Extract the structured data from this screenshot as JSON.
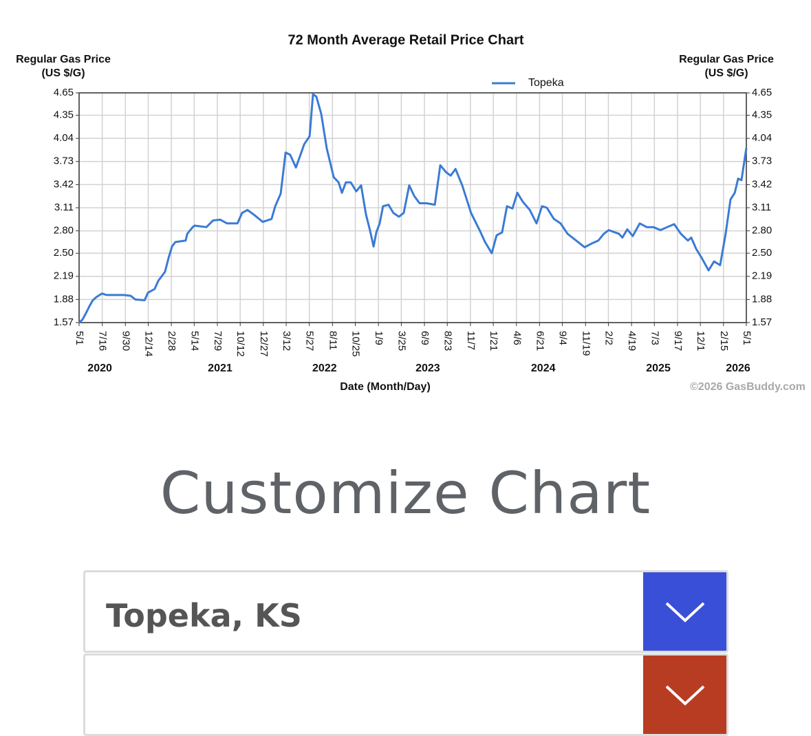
{
  "chart_data": {
    "type": "line",
    "title": "72 Month Average Retail Price Chart",
    "y_label": "Regular Gas Price (US $/G)",
    "y2_label": "Regular Gas Price (US $/G)",
    "x_label": "Date (Month/Day)",
    "annotation": "©2026 GasBuddy.com",
    "grid": true,
    "legend": "top",
    "xlim": [
      "2020-05-01",
      "2026-05-01"
    ],
    "xticks": [
      {
        "value": "2020-05-01",
        "label": "5/1"
      },
      {
        "value": "2020-07-16",
        "label": "7/16"
      },
      {
        "value": "2020-09-30",
        "label": "9/30"
      },
      {
        "value": "2020-12-14",
        "label": "12/14"
      },
      {
        "value": "2021-02-28",
        "label": "2/28"
      },
      {
        "value": "2021-05-14",
        "label": "5/14"
      },
      {
        "value": "2021-07-29",
        "label": "7/29"
      },
      {
        "value": "2021-10-12",
        "label": "10/12"
      },
      {
        "value": "2021-12-27",
        "label": "12/27"
      },
      {
        "value": "2022-03-12",
        "label": "3/12"
      },
      {
        "value": "2022-05-27",
        "label": "5/27"
      },
      {
        "value": "2022-08-11",
        "label": "8/11"
      },
      {
        "value": "2022-10-25",
        "label": "10/25"
      },
      {
        "value": "2023-01-09",
        "label": "1/9"
      },
      {
        "value": "2023-03-25",
        "label": "3/25"
      },
      {
        "value": "2023-06-09",
        "label": "6/9"
      },
      {
        "value": "2023-08-23",
        "label": "8/23"
      },
      {
        "value": "2023-11-07",
        "label": "11/7"
      },
      {
        "value": "2024-01-21",
        "label": "1/21"
      },
      {
        "value": "2024-04-06",
        "label": "4/6"
      },
      {
        "value": "2024-06-21",
        "label": "6/21"
      },
      {
        "value": "2024-09-04",
        "label": "9/4"
      },
      {
        "value": "2024-11-19",
        "label": "11/19"
      },
      {
        "value": "2025-02-02",
        "label": "2/2"
      },
      {
        "value": "2025-04-19",
        "label": "4/19"
      },
      {
        "value": "2025-07-03",
        "label": "7/3"
      },
      {
        "value": "2025-09-17",
        "label": "9/17"
      },
      {
        "value": "2025-12-01",
        "label": "12/1"
      },
      {
        "value": "2026-02-15",
        "label": "2/15"
      },
      {
        "value": "2026-05-01",
        "label": "5/1"
      }
    ],
    "year_labels": [
      {
        "value": "2020-07-08",
        "label": "2020"
      },
      {
        "value": "2021-08-07",
        "label": "2021"
      },
      {
        "value": "2022-07-16",
        "label": "2022"
      },
      {
        "value": "2023-06-20",
        "label": "2023"
      },
      {
        "value": "2024-07-03",
        "label": "2024"
      },
      {
        "value": "2025-07-16",
        "label": "2025"
      },
      {
        "value": "2026-04-04",
        "label": "2026"
      }
    ],
    "ylim": [
      1.57,
      4.65
    ],
    "yticks": [
      1.57,
      1.88,
      2.19,
      {
        "value": 2.5,
        "label": "2.50"
      },
      {
        "value": 2.8,
        "label": "2.80"
      },
      3.11,
      3.42,
      3.73,
      4.04,
      4.35,
      4.65
    ],
    "y2lim": [
      1.57,
      4.65
    ],
    "y2ticks": [
      1.57,
      1.88,
      2.19,
      {
        "value": 2.5,
        "label": "2.50"
      },
      {
        "value": 2.8,
        "label": "2.80"
      },
      3.11,
      3.42,
      3.73,
      4.04,
      4.35,
      4.65
    ],
    "x": [
      "2020-05-01",
      "2020-05-12",
      "2020-05-24",
      "2020-06-04",
      "2020-06-15",
      "2020-06-26",
      "2020-07-15",
      "2020-07-30",
      "2020-08-22",
      "2020-09-25",
      "2020-10-17",
      "2020-11-02",
      "2020-12-02",
      "2020-12-13",
      "2021-01-04",
      "2021-01-16",
      "2021-02-07",
      "2021-02-19",
      "2021-03-02",
      "2021-03-13",
      "2021-04-16",
      "2021-04-21",
      "2021-05-09",
      "2021-05-15",
      "2021-06-23",
      "2021-07-15",
      "2021-08-07",
      "2021-08-30",
      "2021-10-03",
      "2021-10-18",
      "2021-11-05",
      "2021-11-28",
      "2021-12-25",
      "2022-01-23",
      "2022-02-04",
      "2022-02-22",
      "2022-03-10",
      "2022-03-25",
      "2022-04-13",
      "2022-04-28",
      "2022-05-10",
      "2022-05-28",
      "2022-06-08",
      "2022-06-19",
      "2022-07-05",
      "2022-07-23",
      "2022-08-15",
      "2022-08-31",
      "2022-09-11",
      "2022-09-24",
      "2022-10-10",
      "2022-10-28",
      "2022-11-13",
      "2022-11-29",
      "2022-12-12",
      "2022-12-24",
      "2023-01-02",
      "2023-01-13",
      "2023-01-24",
      "2023-02-11",
      "2023-02-27",
      "2023-03-17",
      "2023-04-02",
      "2023-04-20",
      "2023-05-06",
      "2023-05-24",
      "2023-06-16",
      "2023-07-13",
      "2023-07-31",
      "2023-08-18",
      "2023-09-03",
      "2023-09-19",
      "2023-10-11",
      "2023-11-09",
      "2023-12-07",
      "2023-12-25",
      "2024-01-16",
      "2024-02-01",
      "2024-02-19",
      "2024-03-06",
      "2024-03-24",
      "2024-04-09",
      "2024-04-27",
      "2024-05-20",
      "2024-06-11",
      "2024-06-29",
      "2024-07-15",
      "2024-08-07",
      "2024-08-29",
      "2024-09-21",
      "2024-10-13",
      "2024-11-16",
      "2024-12-09",
      "2024-12-31",
      "2025-01-18",
      "2025-02-03",
      "2025-03-09",
      "2025-03-20",
      "2025-04-05",
      "2025-04-23",
      "2025-05-16",
      "2025-06-08",
      "2025-06-30",
      "2025-07-23",
      "2025-08-14",
      "2025-09-06",
      "2025-09-28",
      "2025-10-21",
      "2025-11-01",
      "2025-11-17",
      "2025-12-05",
      "2025-12-28",
      "2026-01-15",
      "2026-02-04",
      "2026-02-22",
      "2026-03-10",
      "2026-03-24",
      "2026-04-04",
      "2026-04-15",
      "2026-05-01"
    ],
    "series": [
      {
        "name": "Topeka",
        "color": "#3a7bd5",
        "values": [
          1.57,
          1.61,
          1.7,
          1.79,
          1.87,
          1.91,
          1.96,
          1.94,
          1.94,
          1.94,
          1.93,
          1.88,
          1.87,
          1.97,
          2.02,
          2.13,
          2.25,
          2.44,
          2.59,
          2.65,
          2.67,
          2.76,
          2.85,
          2.87,
          2.85,
          2.94,
          2.95,
          2.9,
          2.9,
          3.04,
          3.08,
          3.01,
          2.92,
          2.96,
          3.13,
          3.3,
          3.85,
          3.82,
          3.65,
          3.82,
          3.96,
          4.07,
          4.63,
          4.6,
          4.37,
          3.91,
          3.52,
          3.45,
          3.31,
          3.45,
          3.45,
          3.33,
          3.41,
          3.02,
          2.81,
          2.59,
          2.78,
          2.9,
          3.13,
          3.15,
          3.04,
          2.99,
          3.04,
          3.41,
          3.27,
          3.17,
          3.17,
          3.15,
          3.68,
          3.59,
          3.54,
          3.63,
          3.41,
          3.04,
          2.81,
          2.65,
          2.5,
          2.74,
          2.78,
          3.13,
          3.1,
          3.31,
          3.19,
          3.08,
          2.9,
          3.13,
          3.11,
          2.96,
          2.9,
          2.76,
          2.69,
          2.58,
          2.63,
          2.67,
          2.76,
          2.81,
          2.76,
          2.71,
          2.82,
          2.73,
          2.9,
          2.85,
          2.85,
          2.81,
          2.85,
          2.89,
          2.76,
          2.67,
          2.71,
          2.56,
          2.44,
          2.27,
          2.39,
          2.34,
          2.76,
          3.22,
          3.31,
          3.5,
          3.48,
          3.91
        ]
      }
    ]
  },
  "customize": {
    "title": "Customize Chart",
    "location": "Topeka, KS"
  }
}
